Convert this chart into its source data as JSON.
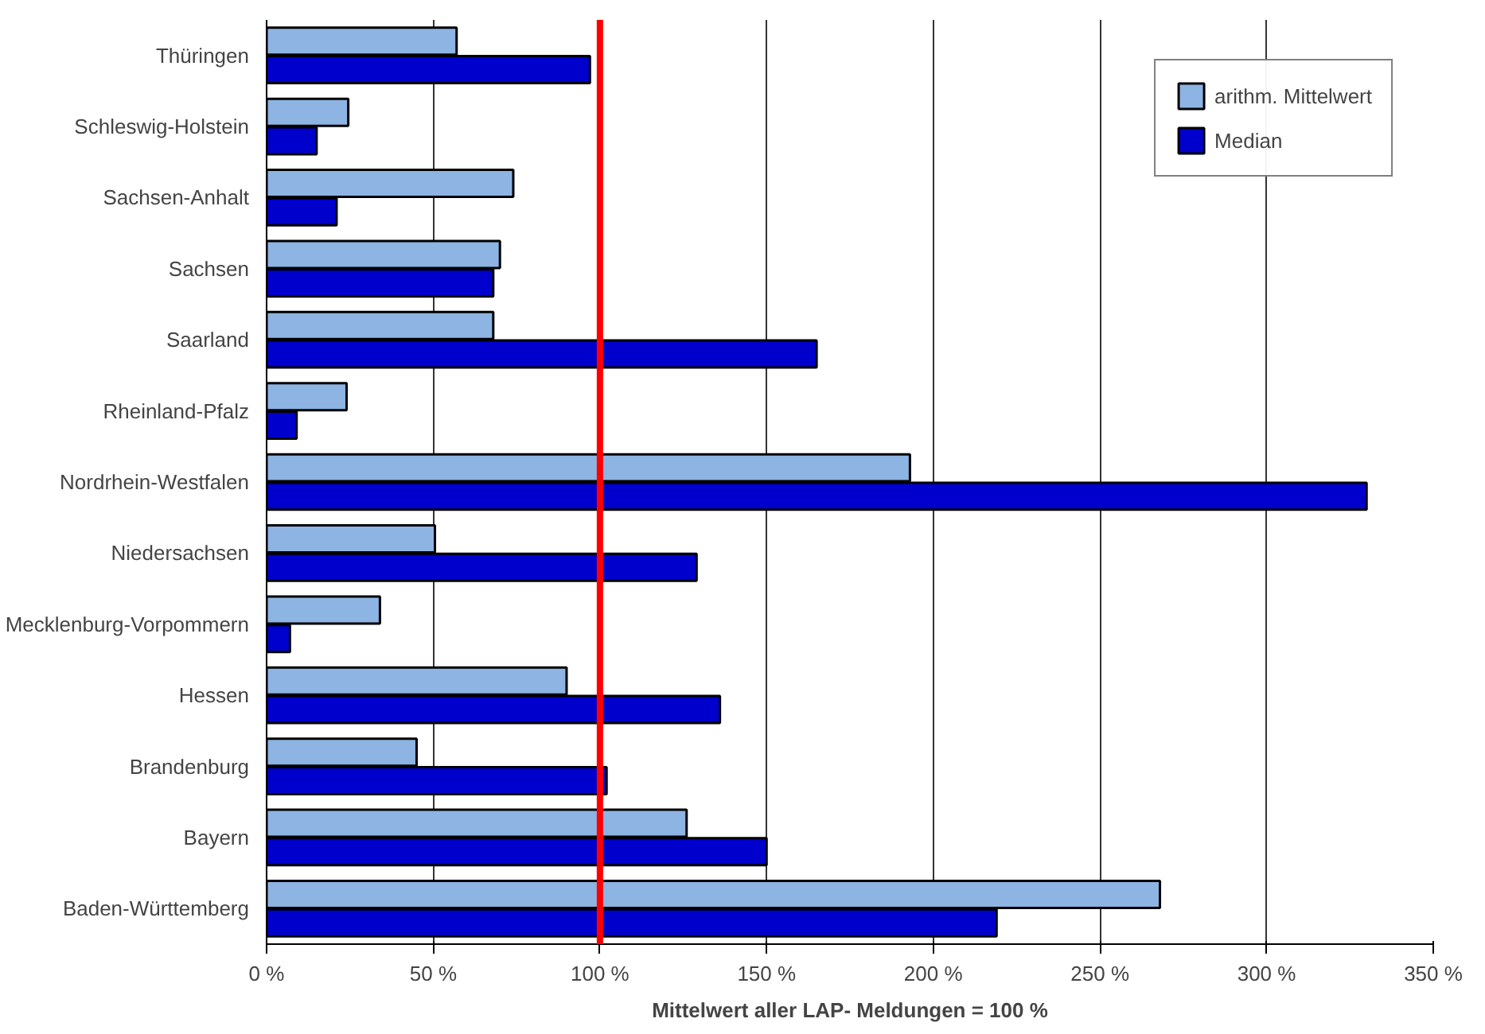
{
  "chart_data": {
    "type": "bar",
    "orientation": "horizontal",
    "xlabel": "Mittelwert aller LAP- Meldungen = 100 %",
    "categories": [
      "Thüringen",
      "Schleswig-Holstein",
      "Sachsen-Anhalt",
      "Sachsen",
      "Saarland",
      "Rheinland-Pfalz",
      "Nordrhein-Westfalen",
      "Niedersachsen",
      "Mecklenburg-Vorpommern",
      "Hessen",
      "Brandenburg",
      "Bayern",
      "Baden-Württemberg"
    ],
    "series": [
      {
        "name": "arithm. Mittelwert",
        "color": "#8db4e2",
        "values": [
          57,
          24.5,
          74,
          70,
          68,
          24,
          193,
          50.5,
          34,
          90,
          45,
          126,
          268
        ]
      },
      {
        "name": "Median",
        "color": "#0000cc",
        "values": [
          97,
          15,
          21,
          68,
          165,
          9,
          330,
          129,
          7,
          136,
          102,
          150,
          219
        ]
      }
    ],
    "xlim": [
      0,
      350
    ],
    "xticks": [
      {
        "value": 0,
        "label": "0 %"
      },
      {
        "value": 50,
        "label": "50 %"
      },
      {
        "value": 100,
        "label": "100 %"
      },
      {
        "value": 150,
        "label": "150 %"
      },
      {
        "value": 200,
        "label": "200 %"
      },
      {
        "value": 250,
        "label": "250 %"
      },
      {
        "value": 300,
        "label": "300 %"
      },
      {
        "value": 350,
        "label": "350 %"
      }
    ],
    "ref_lines": [
      {
        "axis": "x",
        "value": 100,
        "color": "#ff0000"
      }
    ],
    "grid": "x",
    "legend": "top right"
  }
}
